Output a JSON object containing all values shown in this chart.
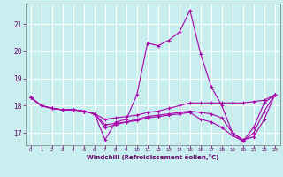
{
  "xlabel": "Windchill (Refroidissement éolien,°C)",
  "background_color": "#c8eef0",
  "grid_color": "#ffffff",
  "line_color": "#aa00aa",
  "tick_color": "#660066",
  "xlim": [
    -0.5,
    23.5
  ],
  "ylim": [
    16.55,
    21.75
  ],
  "yticks": [
    17,
    18,
    19,
    20,
    21
  ],
  "xticks": [
    0,
    1,
    2,
    3,
    4,
    5,
    6,
    7,
    8,
    9,
    10,
    11,
    12,
    13,
    14,
    15,
    16,
    17,
    18,
    19,
    20,
    21,
    22,
    23
  ],
  "series": [
    {
      "x": [
        0,
        1,
        2,
        3,
        4,
        5,
        6,
        7,
        8,
        9,
        10,
        11,
        12,
        13,
        14,
        15,
        16,
        17,
        18,
        19,
        20,
        21,
        22,
        23
      ],
      "y": [
        18.3,
        18.0,
        17.9,
        17.85,
        17.85,
        17.8,
        17.7,
        16.75,
        17.4,
        17.5,
        18.4,
        20.3,
        20.2,
        20.4,
        20.7,
        21.5,
        19.9,
        18.7,
        18.0,
        17.0,
        16.7,
        17.2,
        18.1,
        18.4
      ]
    },
    {
      "x": [
        0,
        1,
        2,
        3,
        4,
        5,
        6,
        7,
        8,
        9,
        10,
        11,
        12,
        13,
        14,
        15,
        16,
        17,
        18,
        19,
        20,
        21,
        22,
        23
      ],
      "y": [
        18.3,
        18.0,
        17.9,
        17.85,
        17.85,
        17.8,
        17.7,
        17.5,
        17.55,
        17.6,
        17.65,
        17.75,
        17.8,
        17.9,
        18.0,
        18.1,
        18.1,
        18.1,
        18.1,
        18.1,
        18.1,
        18.15,
        18.2,
        18.4
      ]
    },
    {
      "x": [
        0,
        1,
        2,
        3,
        4,
        5,
        6,
        7,
        8,
        9,
        10,
        11,
        12,
        13,
        14,
        15,
        16,
        17,
        18,
        19,
        20,
        21,
        22,
        23
      ],
      "y": [
        18.3,
        18.0,
        17.9,
        17.85,
        17.85,
        17.8,
        17.7,
        17.3,
        17.35,
        17.4,
        17.5,
        17.6,
        17.65,
        17.7,
        17.75,
        17.8,
        17.75,
        17.7,
        17.55,
        17.0,
        16.75,
        16.85,
        17.5,
        18.4
      ]
    },
    {
      "x": [
        0,
        1,
        2,
        3,
        4,
        5,
        6,
        7,
        8,
        9,
        10,
        11,
        12,
        13,
        14,
        15,
        16,
        17,
        18,
        19,
        20,
        21,
        22,
        23
      ],
      "y": [
        18.3,
        18.0,
        17.9,
        17.85,
        17.85,
        17.8,
        17.7,
        17.2,
        17.3,
        17.4,
        17.45,
        17.55,
        17.6,
        17.65,
        17.7,
        17.75,
        17.5,
        17.4,
        17.2,
        16.9,
        16.7,
        17.0,
        17.8,
        18.4
      ]
    }
  ]
}
